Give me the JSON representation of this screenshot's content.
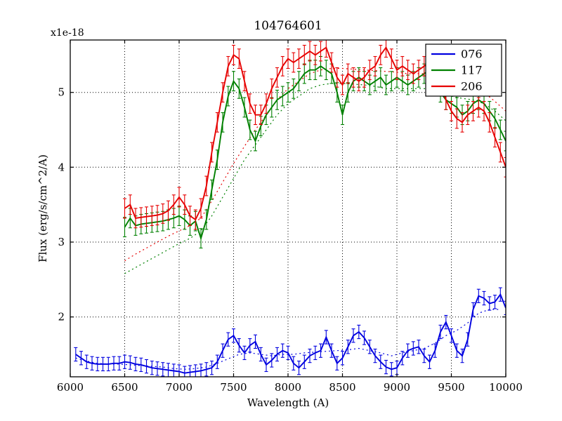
{
  "chart_data": {
    "type": "line",
    "title": "104764601",
    "xlabel": "Wavelength (A)",
    "ylabel": "Flux (erg/s/cm^2/A)",
    "offset_label": "x1e-18",
    "xlim": [
      6000,
      10000
    ],
    "ylim": [
      1.2,
      5.7
    ],
    "xticks": [
      6000,
      6500,
      7000,
      7500,
      8000,
      8500,
      9000,
      9500,
      10000
    ],
    "yticks": [
      2,
      3,
      4,
      5
    ],
    "grid": true,
    "grid_style": "dotted",
    "legend": {
      "position": "upper right",
      "entries": [
        {
          "label": "076",
          "color": "#0000e0"
        },
        {
          "label": "117",
          "color": "#008000"
        },
        {
          "label": "206",
          "color": "#e60000"
        }
      ]
    },
    "series": [
      {
        "name": "076",
        "style": "solid",
        "color": "#0000e0",
        "err": 0.09,
        "x0": 6050,
        "dx": 50,
        "y": [
          1.5,
          1.45,
          1.4,
          1.38,
          1.37,
          1.37,
          1.37,
          1.38,
          1.38,
          1.4,
          1.39,
          1.37,
          1.36,
          1.34,
          1.32,
          1.31,
          1.3,
          1.29,
          1.28,
          1.27,
          1.25,
          1.26,
          1.27,
          1.28,
          1.3,
          1.32,
          1.4,
          1.55,
          1.7,
          1.75,
          1.62,
          1.52,
          1.62,
          1.67,
          1.5,
          1.36,
          1.42,
          1.5,
          1.55,
          1.52,
          1.38,
          1.32,
          1.4,
          1.48,
          1.52,
          1.55,
          1.73,
          1.55,
          1.38,
          1.45,
          1.6,
          1.75,
          1.8,
          1.72,
          1.6,
          1.48,
          1.4,
          1.33,
          1.3,
          1.32,
          1.45,
          1.55,
          1.58,
          1.6,
          1.48,
          1.4,
          1.55,
          1.8,
          1.93,
          1.75,
          1.55,
          1.48,
          1.7,
          2.1,
          2.28,
          2.25,
          2.18,
          2.2,
          2.3,
          2.12
        ]
      },
      {
        "name": "117",
        "style": "solid",
        "color": "#008000",
        "err": 0.13,
        "x0": 6500,
        "dx": 50,
        "y": [
          3.2,
          3.32,
          3.22,
          3.24,
          3.25,
          3.26,
          3.27,
          3.28,
          3.3,
          3.32,
          3.35,
          3.3,
          3.22,
          3.28,
          3.05,
          3.3,
          3.7,
          4.1,
          4.6,
          4.95,
          5.15,
          5.05,
          4.8,
          4.5,
          4.35,
          4.55,
          4.7,
          4.8,
          4.9,
          4.95,
          5.0,
          5.05,
          5.15,
          5.25,
          5.3,
          5.3,
          5.35,
          5.3,
          5.25,
          5.0,
          4.7,
          5.0,
          5.15,
          5.2,
          5.15,
          5.1,
          5.15,
          5.2,
          5.1,
          5.15,
          5.2,
          5.15,
          5.1,
          5.15,
          5.2,
          5.25,
          5.3,
          5.15,
          5.0,
          4.9,
          4.85,
          4.8,
          4.7,
          4.75,
          4.85,
          4.9,
          4.85,
          4.75,
          4.65,
          4.5,
          4.35
        ]
      },
      {
        "name": "206",
        "style": "solid",
        "color": "#e60000",
        "err": 0.13,
        "x0": 6500,
        "dx": 50,
        "y": [
          3.45,
          3.5,
          3.32,
          3.33,
          3.34,
          3.35,
          3.36,
          3.38,
          3.42,
          3.5,
          3.6,
          3.5,
          3.35,
          3.3,
          3.45,
          3.75,
          4.2,
          4.6,
          5.0,
          5.35,
          5.5,
          5.45,
          5.15,
          4.85,
          4.7,
          4.7,
          4.85,
          5.05,
          5.2,
          5.35,
          5.45,
          5.4,
          5.45,
          5.5,
          5.55,
          5.5,
          5.55,
          5.6,
          5.4,
          5.2,
          5.1,
          5.25,
          5.2,
          5.15,
          5.2,
          5.3,
          5.35,
          5.5,
          5.6,
          5.45,
          5.3,
          5.35,
          5.3,
          5.25,
          5.3,
          5.35,
          5.4,
          5.25,
          5.1,
          4.9,
          4.75,
          4.65,
          4.6,
          4.7,
          4.75,
          4.8,
          4.75,
          4.6,
          4.4,
          4.2,
          4.0
        ]
      },
      {
        "name": "076-model",
        "style": "dotted",
        "color": "#0000e0",
        "x0": 6050,
        "dx": 100,
        "y": [
          1.45,
          1.41,
          1.38,
          1.37,
          1.37,
          1.36,
          1.35,
          1.34,
          1.33,
          1.31,
          1.3,
          1.31,
          1.33,
          1.38,
          1.44,
          1.5,
          1.52,
          1.5,
          1.48,
          1.5,
          1.5,
          1.52,
          1.53,
          1.54,
          1.55,
          1.56,
          1.58,
          1.55,
          1.52,
          1.48,
          1.52,
          1.55,
          1.58,
          1.65,
          1.75,
          1.82,
          1.92,
          2.05,
          2.1,
          2.1
        ]
      },
      {
        "name": "117-model",
        "style": "dotted",
        "color": "#008000",
        "x0": 6500,
        "dx": 100,
        "y": [
          2.58,
          2.66,
          2.74,
          2.82,
          2.9,
          2.98,
          3.05,
          3.15,
          3.35,
          3.6,
          3.85,
          4.1,
          4.3,
          4.5,
          4.7,
          4.85,
          4.95,
          5.05,
          5.1,
          5.12,
          5.12,
          5.11,
          5.1,
          5.08,
          5.05,
          5.05,
          5.05,
          5.05,
          5.05,
          5.0,
          4.95,
          4.92,
          4.9,
          4.85,
          4.75,
          4.62
        ]
      },
      {
        "name": "206-model",
        "style": "dotted",
        "color": "#e60000",
        "x0": 6500,
        "dx": 100,
        "y": [
          2.75,
          2.84,
          2.92,
          3.0,
          3.08,
          3.15,
          3.22,
          3.32,
          3.55,
          3.8,
          4.05,
          4.28,
          4.5,
          4.7,
          4.9,
          5.05,
          5.15,
          5.25,
          5.3,
          5.32,
          5.32,
          5.31,
          5.3,
          5.29,
          5.28,
          5.27,
          5.25,
          5.25,
          5.25,
          5.2,
          5.15,
          5.1,
          5.05,
          5.0,
          4.88,
          4.75
        ]
      }
    ]
  }
}
